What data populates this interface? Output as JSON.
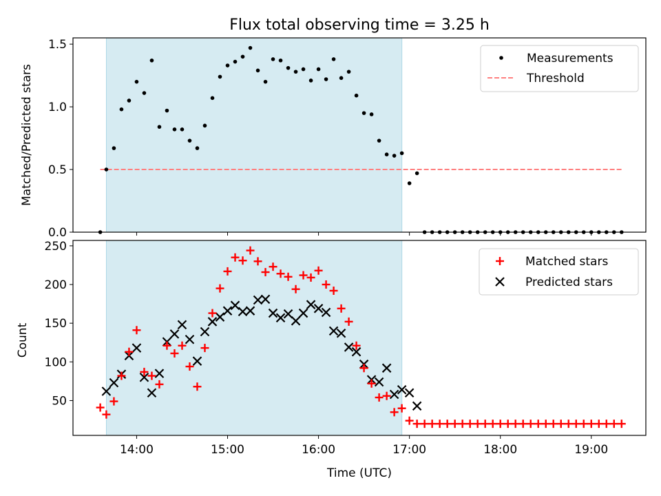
{
  "chart_data": [
    {
      "type": "scatter",
      "title": "Flux total observing time = 3.25 h",
      "ylabel": "Matched/Predicted stars",
      "xlabel": "",
      "xlim_hours": [
        13.3,
        19.6
      ],
      "ylim": [
        0,
        1.55
      ],
      "yticks": [
        0.0,
        0.5,
        1.0,
        1.5
      ],
      "ytick_labels": [
        "0.0",
        "0.5",
        "1.0",
        "1.5"
      ],
      "observing_window_hours": [
        13.667,
        16.917
      ],
      "window_color": "#add8e6",
      "threshold": {
        "y": 0.5,
        "x_range_hours": [
          13.6,
          19.333
        ],
        "color": "#ff7f7f"
      },
      "legend": {
        "position": "top-right",
        "entries": [
          {
            "label": "Measurements",
            "marker": "dot",
            "color": "#000000"
          },
          {
            "label": "Threshold",
            "marker": "dashed-line",
            "color": "#ff7f7f"
          }
        ]
      },
      "series": [
        {
          "name": "Measurements",
          "color": "#000000",
          "x": [
            "13:36",
            "13:40",
            "13:45",
            "13:50",
            "13:55",
            "14:00",
            "14:05",
            "14:10",
            "14:15",
            "14:20",
            "14:25",
            "14:30",
            "14:35",
            "14:40",
            "14:45",
            "14:50",
            "14:55",
            "15:00",
            "15:05",
            "15:10",
            "15:15",
            "15:20",
            "15:25",
            "15:30",
            "15:35",
            "15:40",
            "15:45",
            "15:50",
            "15:55",
            "16:00",
            "16:05",
            "16:10",
            "16:15",
            "16:20",
            "16:25",
            "16:30",
            "16:35",
            "16:40",
            "16:45",
            "16:50",
            "16:55",
            "17:00",
            "17:05",
            "17:10",
            "17:15",
            "17:20",
            "17:25",
            "17:30",
            "17:35",
            "17:40",
            "17:45",
            "17:50",
            "17:55",
            "18:00",
            "18:05",
            "18:10",
            "18:15",
            "18:20",
            "18:25",
            "18:30",
            "18:35",
            "18:40",
            "18:45",
            "18:50",
            "18:55",
            "19:00",
            "19:05",
            "19:10",
            "19:15",
            "19:20"
          ],
          "y": [
            0.0,
            0.5,
            0.67,
            0.98,
            1.05,
            1.2,
            1.11,
            1.37,
            0.84,
            0.97,
            0.82,
            0.82,
            0.73,
            0.67,
            0.85,
            1.07,
            1.24,
            1.33,
            1.36,
            1.4,
            1.47,
            1.29,
            1.2,
            1.38,
            1.37,
            1.31,
            1.28,
            1.3,
            1.21,
            1.3,
            1.22,
            1.38,
            1.23,
            1.28,
            1.09,
            0.95,
            0.94,
            0.73,
            0.62,
            0.61,
            0.63,
            0.39,
            0.47,
            0.0,
            0.0,
            0.0,
            0.0,
            0.0,
            0.0,
            0.0,
            0.0,
            0.0,
            0.0,
            0.0,
            0.0,
            0.0,
            0.0,
            0.0,
            0.0,
            0.0,
            0.0,
            0.0,
            0.0,
            0.0,
            0.0,
            0.0,
            0.0,
            0.0,
            0.0,
            0.0
          ]
        }
      ]
    },
    {
      "type": "scatter",
      "title": "",
      "ylabel": "Count",
      "xlabel": "Time (UTC)",
      "xlim_hours": [
        13.3,
        19.6
      ],
      "ylim": [
        5,
        257
      ],
      "yticks": [
        50,
        100,
        150,
        200,
        250
      ],
      "ytick_labels": [
        "50",
        "100",
        "150",
        "200",
        "250"
      ],
      "xticks_hours": [
        14,
        15,
        16,
        17,
        18,
        19
      ],
      "xtick_labels": [
        "14:00",
        "15:00",
        "16:00",
        "17:00",
        "18:00",
        "19:00"
      ],
      "observing_window_hours": [
        13.667,
        16.917
      ],
      "window_color": "#add8e6",
      "legend": {
        "position": "top-right",
        "entries": [
          {
            "label": "Matched stars",
            "marker": "plus",
            "color": "#ff0000"
          },
          {
            "label": "Predicted stars",
            "marker": "x",
            "color": "#000000"
          }
        ]
      },
      "x": [
        "13:36",
        "13:40",
        "13:45",
        "13:50",
        "13:55",
        "14:00",
        "14:05",
        "14:10",
        "14:15",
        "14:20",
        "14:25",
        "14:30",
        "14:35",
        "14:40",
        "14:45",
        "14:50",
        "14:55",
        "15:00",
        "15:05",
        "15:10",
        "15:15",
        "15:20",
        "15:25",
        "15:30",
        "15:35",
        "15:40",
        "15:45",
        "15:50",
        "15:55",
        "16:00",
        "16:05",
        "16:10",
        "16:15",
        "16:20",
        "16:25",
        "16:30",
        "16:35",
        "16:40",
        "16:45",
        "16:50",
        "16:55",
        "17:00",
        "17:05",
        "17:10",
        "17:15",
        "17:20",
        "17:25",
        "17:30",
        "17:35",
        "17:40",
        "17:45",
        "17:50",
        "17:55",
        "18:00",
        "18:05",
        "18:10",
        "18:15",
        "18:20",
        "18:25",
        "18:30",
        "18:35",
        "18:40",
        "18:45",
        "18:50",
        "18:55",
        "19:00",
        "19:05",
        "19:10",
        "19:15",
        "19:20"
      ],
      "series": [
        {
          "name": "Matched stars",
          "color": "#ff0000",
          "values": [
            41,
            32,
            49,
            82,
            113,
            141,
            87,
            82,
            71,
            121,
            111,
            121,
            94,
            68,
            118,
            163,
            195,
            217,
            235,
            231,
            244,
            230,
            216,
            223,
            214,
            210,
            194,
            212,
            209,
            218,
            200,
            192,
            169,
            152,
            121,
            92,
            72,
            54,
            56,
            35,
            40,
            24,
            20,
            20,
            20,
            20,
            20,
            20,
            20,
            20,
            20,
            20,
            20,
            20,
            20,
            20,
            20,
            20,
            20,
            20,
            20,
            20,
            20,
            20,
            20,
            20,
            20,
            20,
            20,
            20
          ]
        },
        {
          "name": "Predicted stars",
          "color": "#000000",
          "values": [
            null,
            62,
            73,
            84,
            108,
            118,
            80,
            60,
            85,
            126,
            136,
            148,
            129,
            101,
            139,
            152,
            158,
            166,
            173,
            165,
            166,
            180,
            181,
            163,
            157,
            162,
            153,
            163,
            174,
            169,
            164,
            140,
            137,
            119,
            113,
            97,
            77,
            74,
            92,
            58,
            64,
            60,
            43,
            null,
            null,
            null,
            null,
            null,
            null,
            null,
            null,
            null,
            null,
            null,
            null,
            null,
            null,
            null,
            null,
            null,
            null,
            null,
            null,
            null,
            null,
            null,
            null,
            null,
            null,
            null
          ]
        }
      ]
    }
  ]
}
